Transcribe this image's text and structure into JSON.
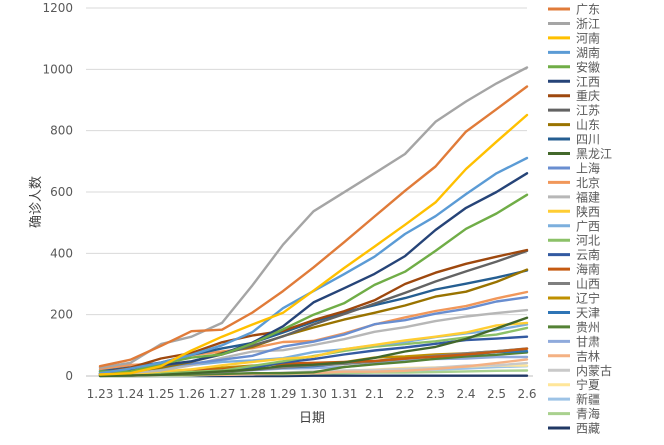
{
  "chart_data": {
    "type": "line",
    "title": "",
    "xlabel": "日期",
    "ylabel": "确诊人数",
    "ylim": [
      0,
      1200
    ],
    "yticks": [
      0,
      200,
      400,
      600,
      800,
      1000,
      1200
    ],
    "grid": true,
    "legend_position": "right",
    "categories": [
      "1.23",
      "1.24",
      "1.25",
      "1.26",
      "1.27",
      "1.28",
      "1.29",
      "1.30",
      "1.31",
      "2.1",
      "2.2",
      "2.3",
      "2.4",
      "2.5",
      "2.6"
    ],
    "series": [
      {
        "name": "广东",
        "color": "#E07B39",
        "values": [
          32,
          53,
          98,
          146,
          151,
          207,
          277,
          354,
          436,
          520,
          604,
          683,
          797,
          870,
          944
        ]
      },
      {
        "name": "浙江",
        "color": "#A5A5A5",
        "values": [
          27,
          43,
          104,
          128,
          173,
          296,
          428,
          537,
          599,
          661,
          724,
          829,
          895,
          954,
          1006
        ]
      },
      {
        "name": "河南",
        "color": "#FFC000",
        "values": [
          5,
          9,
          32,
          83,
          128,
          168,
          206,
          278,
          352,
          422,
          493,
          566,
          675,
          764,
          851
        ]
      },
      {
        "name": "湖南",
        "color": "#5B9BD5",
        "values": [
          9,
          24,
          43,
          69,
          100,
          143,
          221,
          277,
          332,
          389,
          463,
          521,
          593,
          661,
          711
        ]
      },
      {
        "name": "安徽",
        "color": "#70AD47",
        "values": [
          15,
          15,
          39,
          60,
          70,
          106,
          152,
          200,
          237,
          297,
          340,
          408,
          480,
          530,
          591
        ]
      },
      {
        "name": "江西",
        "color": "#264478",
        "values": [
          7,
          18,
          36,
          48,
          72,
          109,
          162,
          240,
          286,
          333,
          391,
          476,
          548,
          600,
          661
        ]
      },
      {
        "name": "重庆",
        "color": "#9E480E",
        "values": [
          9,
          27,
          57,
          75,
          110,
          132,
          147,
          182,
          211,
          247,
          300,
          337,
          366,
          389,
          411
        ]
      },
      {
        "name": "江苏",
        "color": "#636363",
        "values": [
          9,
          18,
          33,
          47,
          70,
          99,
          129,
          168,
          202,
          236,
          271,
          308,
          341,
          373,
          408
        ]
      },
      {
        "name": "山东",
        "color": "#997300",
        "values": [
          6,
          15,
          27,
          46,
          75,
          95,
          130,
          158,
          184,
          206,
          230,
          259,
          275,
          307,
          347
        ]
      },
      {
        "name": "四川",
        "color": "#255E91",
        "values": [
          15,
          28,
          44,
          69,
          90,
          108,
          142,
          177,
          207,
          231,
          254,
          282,
          301,
          321,
          344
        ]
      },
      {
        "name": "黑龙江",
        "color": "#43682B",
        "values": [
          0,
          2,
          4,
          9,
          15,
          21,
          33,
          37,
          44,
          59,
          80,
          95,
          121,
          155,
          190
        ]
      },
      {
        "name": "上海",
        "color": "#698ED0",
        "values": [
          16,
          20,
          33,
          40,
          53,
          66,
          96,
          112,
          135,
          169,
          182,
          203,
          219,
          243,
          257
        ]
      },
      {
        "name": "北京",
        "color": "#F1975A",
        "values": [
          22,
          36,
          41,
          68,
          80,
          91,
          111,
          114,
          139,
          168,
          191,
          212,
          228,
          253,
          274
        ]
      },
      {
        "name": "福建",
        "color": "#B7B7B7",
        "values": [
          5,
          10,
          18,
          35,
          59,
          80,
          84,
          101,
          120,
          144,
          159,
          179,
          194,
          205,
          215
        ]
      },
      {
        "name": "陕西",
        "color": "#FFCD33",
        "values": [
          3,
          5,
          15,
          22,
          35,
          46,
          56,
          63,
          87,
          101,
          116,
          128,
          142,
          165,
          173
        ]
      },
      {
        "name": "广西",
        "color": "#7CAFDD",
        "values": [
          2,
          13,
          23,
          36,
          46,
          51,
          58,
          78,
          87,
          100,
          111,
          127,
          139,
          150,
          168
        ]
      },
      {
        "name": "河北",
        "color": "#8CC168",
        "values": [
          1,
          2,
          8,
          13,
          18,
          33,
          48,
          65,
          82,
          96,
          104,
          113,
          126,
          135,
          157
        ]
      },
      {
        "name": "云南",
        "color": "#335AA1",
        "values": [
          1,
          2,
          5,
          11,
          16,
          26,
          44,
          55,
          70,
          83,
          93,
          105,
          117,
          122,
          128
        ]
      },
      {
        "name": "海南",
        "color": "#C55A11",
        "values": [
          4,
          5,
          8,
          19,
          22,
          33,
          40,
          43,
          46,
          49,
          57,
          63,
          70,
          79,
          89
        ]
      },
      {
        "name": "山西",
        "color": "#7F7F7F",
        "values": [
          1,
          1,
          6,
          9,
          13,
          20,
          27,
          35,
          39,
          47,
          56,
          66,
          74,
          81,
          90
        ]
      },
      {
        "name": "辽宁",
        "color": "#BF9000",
        "values": [
          3,
          4,
          13,
          21,
          27,
          34,
          39,
          41,
          45,
          60,
          64,
          70,
          74,
          81,
          89
        ]
      },
      {
        "name": "天津",
        "color": "#2E75B6",
        "values": [
          4,
          8,
          10,
          14,
          23,
          24,
          27,
          32,
          41,
          48,
          60,
          67,
          69,
          78,
          81
        ]
      },
      {
        "name": "贵州",
        "color": "#548235",
        "values": [
          1,
          3,
          4,
          5,
          7,
          9,
          9,
          12,
          29,
          38,
          46,
          56,
          64,
          69,
          77
        ]
      },
      {
        "name": "甘肃",
        "color": "#8FAADC",
        "values": [
          1,
          2,
          4,
          7,
          14,
          19,
          24,
          26,
          29,
          40,
          51,
          55,
          57,
          62,
          62
        ]
      },
      {
        "name": "吉林",
        "color": "#F4B183",
        "values": [
          1,
          1,
          4,
          4,
          4,
          6,
          8,
          9,
          14,
          14,
          17,
          23,
          31,
          42,
          54
        ]
      },
      {
        "name": "内蒙古",
        "color": "#C9C9C9",
        "values": [
          0,
          1,
          2,
          3,
          7,
          7,
          11,
          15,
          18,
          20,
          23,
          27,
          34,
          35,
          42
        ]
      },
      {
        "name": "宁夏",
        "color": "#FFE699",
        "values": [
          1,
          1,
          2,
          3,
          4,
          7,
          11,
          12,
          17,
          21,
          26,
          28,
          31,
          34,
          34
        ]
      },
      {
        "name": "新疆",
        "color": "#9DC3E6",
        "values": [
          0,
          2,
          2,
          3,
          4,
          5,
          10,
          13,
          14,
          17,
          18,
          21,
          24,
          29,
          32
        ]
      },
      {
        "name": "青海",
        "color": "#A9D18E",
        "values": [
          0,
          0,
          0,
          1,
          6,
          6,
          6,
          8,
          9,
          11,
          11,
          13,
          15,
          17,
          18
        ]
      },
      {
        "name": "西藏",
        "color": "#203864",
        "values": [
          0,
          0,
          0,
          0,
          0,
          0,
          0,
          1,
          1,
          1,
          1,
          1,
          1,
          1,
          1
        ]
      }
    ]
  }
}
